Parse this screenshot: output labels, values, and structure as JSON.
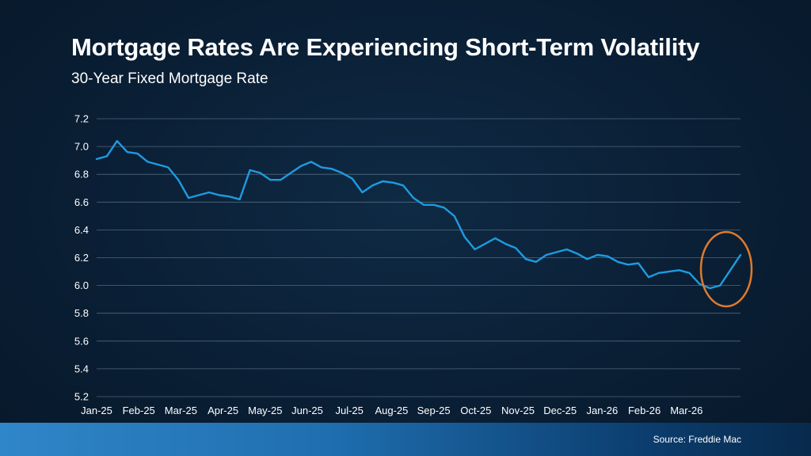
{
  "header": {
    "title": "Mortgage Rates Are Experiencing Short-Term Volatility",
    "subtitle": "30-Year Fixed Mortgage Rate"
  },
  "footer": {
    "source": "Source: Freddie Mac"
  },
  "colors": {
    "line": "#1e9be0",
    "highlight_circle": "#e07a2c",
    "grid": "#8aa0b5"
  },
  "chart_data": {
    "type": "line",
    "title": "Mortgage Rates Are Experiencing Short-Term Volatility",
    "subtitle": "30-Year Fixed Mortgage Rate",
    "ylim": [
      5.2,
      7.2
    ],
    "yticks": [
      "5.2",
      "5.4",
      "5.6",
      "5.8",
      "6.0",
      "6.2",
      "6.4",
      "6.6",
      "6.8",
      "7.0",
      "7.2"
    ],
    "xticks": [
      "Jan-25",
      "Feb-25",
      "Mar-25",
      "Apr-25",
      "May-25",
      "Jun-25",
      "Jul-25",
      "Aug-25",
      "Sep-25",
      "Oct-25",
      "Nov-25",
      "Dec-25",
      "Jan-26",
      "Feb-26",
      "Mar-26"
    ],
    "grid": true,
    "annotation": "highlight circle around latest values (Mar-26)",
    "series": [
      {
        "values": [
          6.91,
          6.93,
          7.04,
          6.96,
          6.95,
          6.89,
          6.87,
          6.85,
          6.76,
          6.63,
          6.65,
          6.67,
          6.65,
          6.64,
          6.62,
          6.83,
          6.81,
          6.76,
          6.76,
          6.81,
          6.86,
          6.89,
          6.85,
          6.84,
          6.81,
          6.77,
          6.67,
          6.72,
          6.75,
          6.74,
          6.72,
          6.63,
          6.58,
          6.58,
          6.56,
          6.5,
          6.35,
          6.26,
          6.3,
          6.34,
          6.3,
          6.27,
          6.19,
          6.17,
          6.22,
          6.24,
          6.26,
          6.23,
          6.19,
          6.22,
          6.21,
          6.17,
          6.15,
          6.16,
          6.06,
          6.09,
          6.1,
          6.11,
          6.09,
          6.01,
          5.98,
          6.0,
          6.11,
          6.22
        ]
      }
    ]
  }
}
